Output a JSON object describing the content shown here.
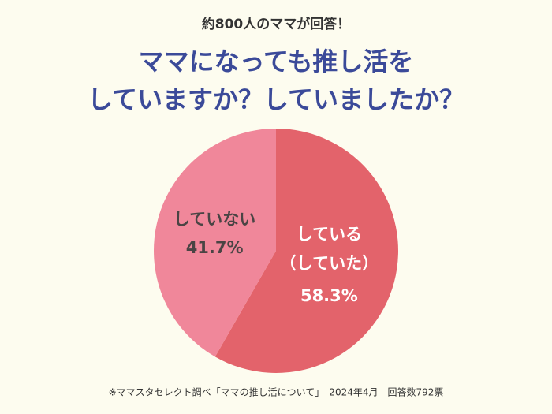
{
  "chart_data": {
    "type": "pie",
    "subtitle": "約800人のママが回答！",
    "title": [
      "ママになっても推し活を",
      "していますか？していましたか？"
    ],
    "categories": [
      "している（していた）",
      "していない"
    ],
    "values": [
      58.3,
      41.7
    ],
    "value_labels": [
      "58.3%",
      "41.7%"
    ],
    "colors": [
      "#e3636b",
      "#f0879a"
    ],
    "label_colors": [
      "#ffffff",
      "#4a4444"
    ],
    "source": "※ママスタセレクト調べ「ママの推し活について」　2024年4月　回答数792票"
  }
}
